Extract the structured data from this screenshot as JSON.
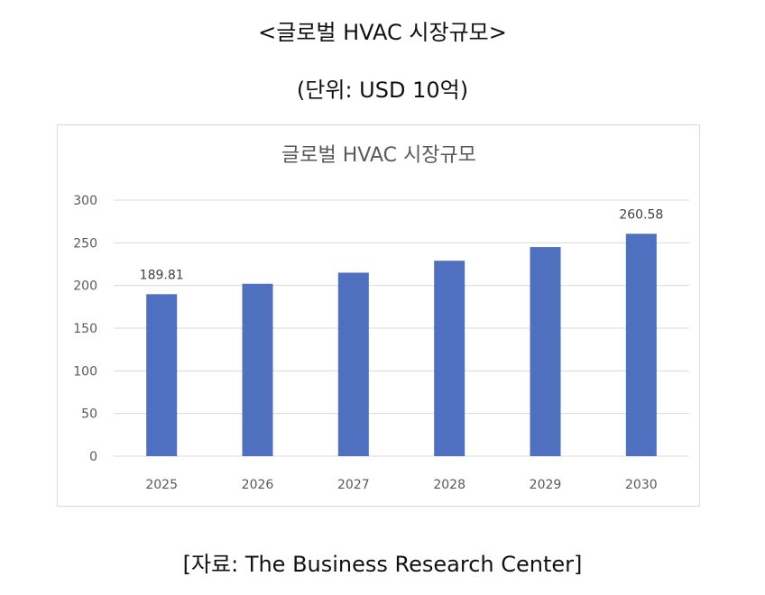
{
  "header": {
    "title": "<글로벌 HVAC 시장규모>",
    "unit": "(단위: USD 10억)"
  },
  "footer": {
    "source": "[자료: The Business Research Center]"
  },
  "colors": {
    "bar": "#4e70be",
    "grid": "#d9d9d9",
    "axis_text": "#595959"
  },
  "chart_data": {
    "type": "bar",
    "title": "글로벌 HVAC 시장규모",
    "categories": [
      "2025",
      "2026",
      "2027",
      "2028",
      "2029",
      "2030"
    ],
    "series": [
      {
        "values": [
          189.81,
          202,
          215,
          229,
          245,
          260.58
        ]
      }
    ],
    "data_labels": [
      "189.81",
      "",
      "",
      "",
      "",
      "260.58"
    ],
    "ylim": [
      0,
      300
    ],
    "yticks": [
      0,
      50,
      100,
      150,
      200,
      250,
      300
    ],
    "xlabel": "",
    "ylabel": "",
    "grid": true,
    "legend": "none"
  }
}
